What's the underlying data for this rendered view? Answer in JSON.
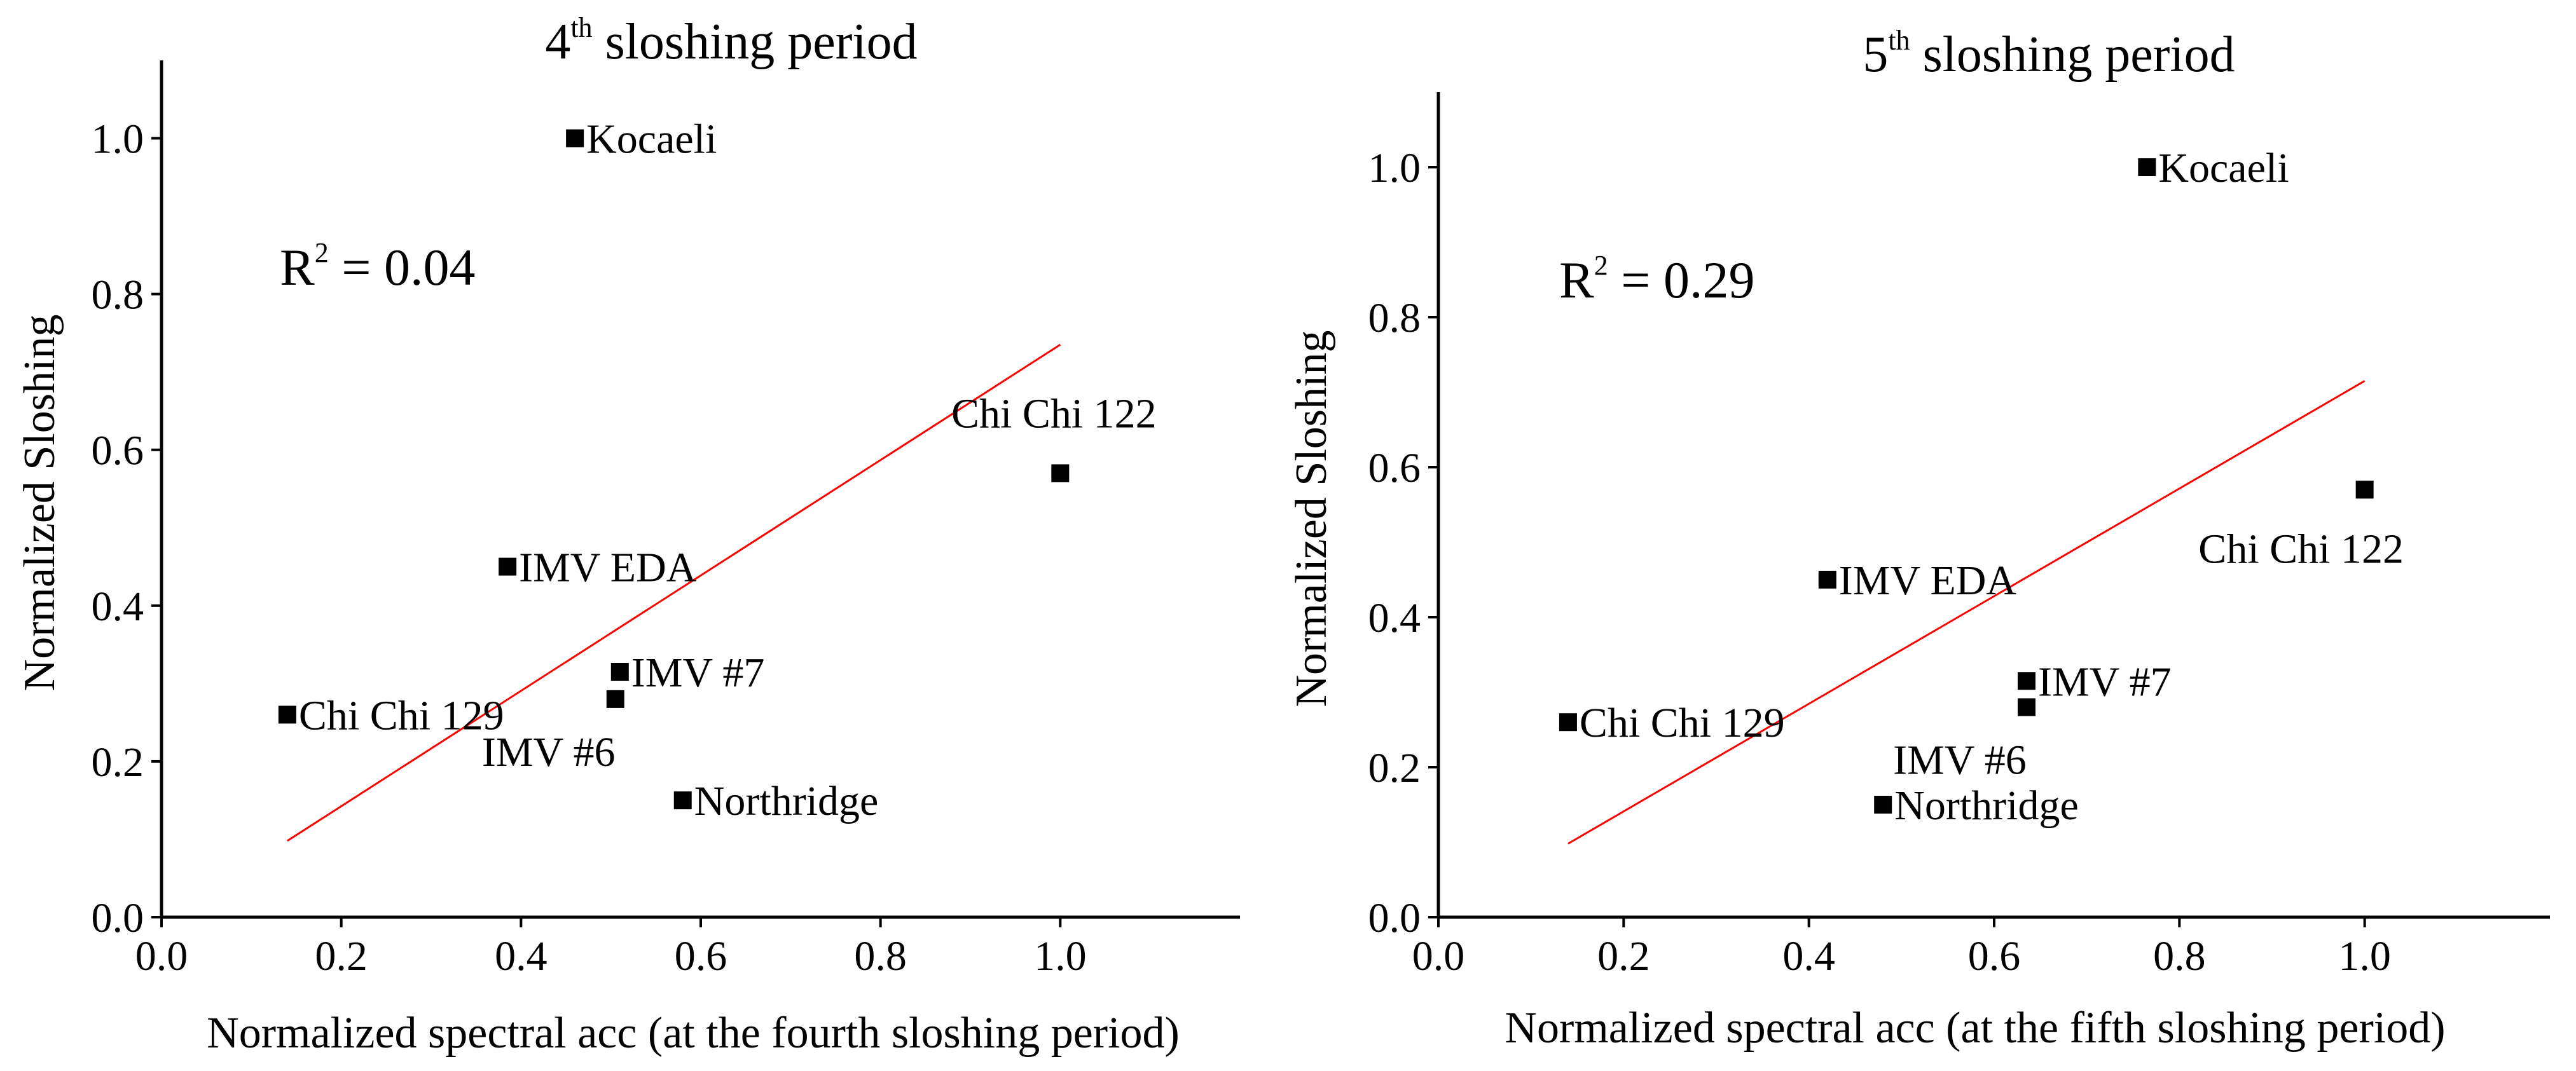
{
  "chart_data": [
    {
      "type": "scatter",
      "title_main": "4",
      "title_sup": "th",
      "title_rest": " sloshing period",
      "xlabel": "Normalized spectral acc (at the fourth sloshing period)",
      "ylabel": "Normalized Sloshing",
      "xlim": [
        0.0,
        1.2
      ],
      "ylim": [
        0.0,
        1.1
      ],
      "xticks": [
        "0.0",
        "0.2",
        "0.4",
        "0.6",
        "0.8",
        "1.0"
      ],
      "yticks": [
        "0.0",
        "0.2",
        "0.4",
        "0.6",
        "0.8",
        "1.0"
      ],
      "annotation": {
        "prefix": "R",
        "sup": "2",
        "suffix": " = 0.04"
      },
      "points": [
        {
          "label": "Kocaeli",
          "x": 0.46,
          "y": 1.0,
          "label_pos": "right"
        },
        {
          "label": "Chi Chi 122",
          "x": 1.0,
          "y": 0.57,
          "label_pos": "above"
        },
        {
          "label": "IMV EDA",
          "x": 0.385,
          "y": 0.45,
          "label_pos": "right"
        },
        {
          "label": "IMV #7",
          "x": 0.51,
          "y": 0.315,
          "label_pos": "right"
        },
        {
          "label": "IMV #6",
          "x": 0.505,
          "y": 0.28,
          "label_pos": "below"
        },
        {
          "label": "Chi Chi 129",
          "x": 0.14,
          "y": 0.26,
          "label_pos": "right"
        },
        {
          "label": "Northridge",
          "x": 0.58,
          "y": 0.15,
          "label_pos": "right"
        }
      ],
      "trendline": {
        "color": "#ff0000",
        "x": [
          0.14,
          1.0
        ],
        "y": [
          0.098,
          0.735
        ]
      }
    },
    {
      "type": "scatter",
      "title_main": "5",
      "title_sup": "th",
      "title_rest": " sloshing period",
      "xlabel": "Normalized spectral acc (at the fifth sloshing period)",
      "ylabel": "Normalized Sloshing",
      "xlim": [
        0.0,
        1.2
      ],
      "ylim": [
        0.0,
        1.1
      ],
      "xticks": [
        "0.0",
        "0.2",
        "0.4",
        "0.6",
        "0.8",
        "1.0"
      ],
      "yticks": [
        "0.0",
        "0.2",
        "0.4",
        "0.6",
        "0.8",
        "1.0"
      ],
      "annotation": {
        "prefix": "R",
        "sup": "2",
        "suffix": " = 0.29"
      },
      "points": [
        {
          "label": "Kocaeli",
          "x": 0.765,
          "y": 1.0,
          "label_pos": "right"
        },
        {
          "label": "Chi Chi 122",
          "x": 1.0,
          "y": 0.57,
          "label_pos": "below"
        },
        {
          "label": "IMV EDA",
          "x": 0.42,
          "y": 0.45,
          "label_pos": "right"
        },
        {
          "label": "IMV #7",
          "x": 0.635,
          "y": 0.315,
          "label_pos": "right"
        },
        {
          "label": "IMV #6",
          "x": 0.635,
          "y": 0.28,
          "label_pos": "below"
        },
        {
          "label": "Chi Chi 129",
          "x": 0.14,
          "y": 0.26,
          "label_pos": "right"
        },
        {
          "label": "Northridge",
          "x": 0.48,
          "y": 0.15,
          "label_pos": "right"
        }
      ],
      "trendline": {
        "color": "#ff0000",
        "x": [
          0.14,
          1.0
        ],
        "y": [
          0.098,
          0.715
        ]
      }
    }
  ]
}
